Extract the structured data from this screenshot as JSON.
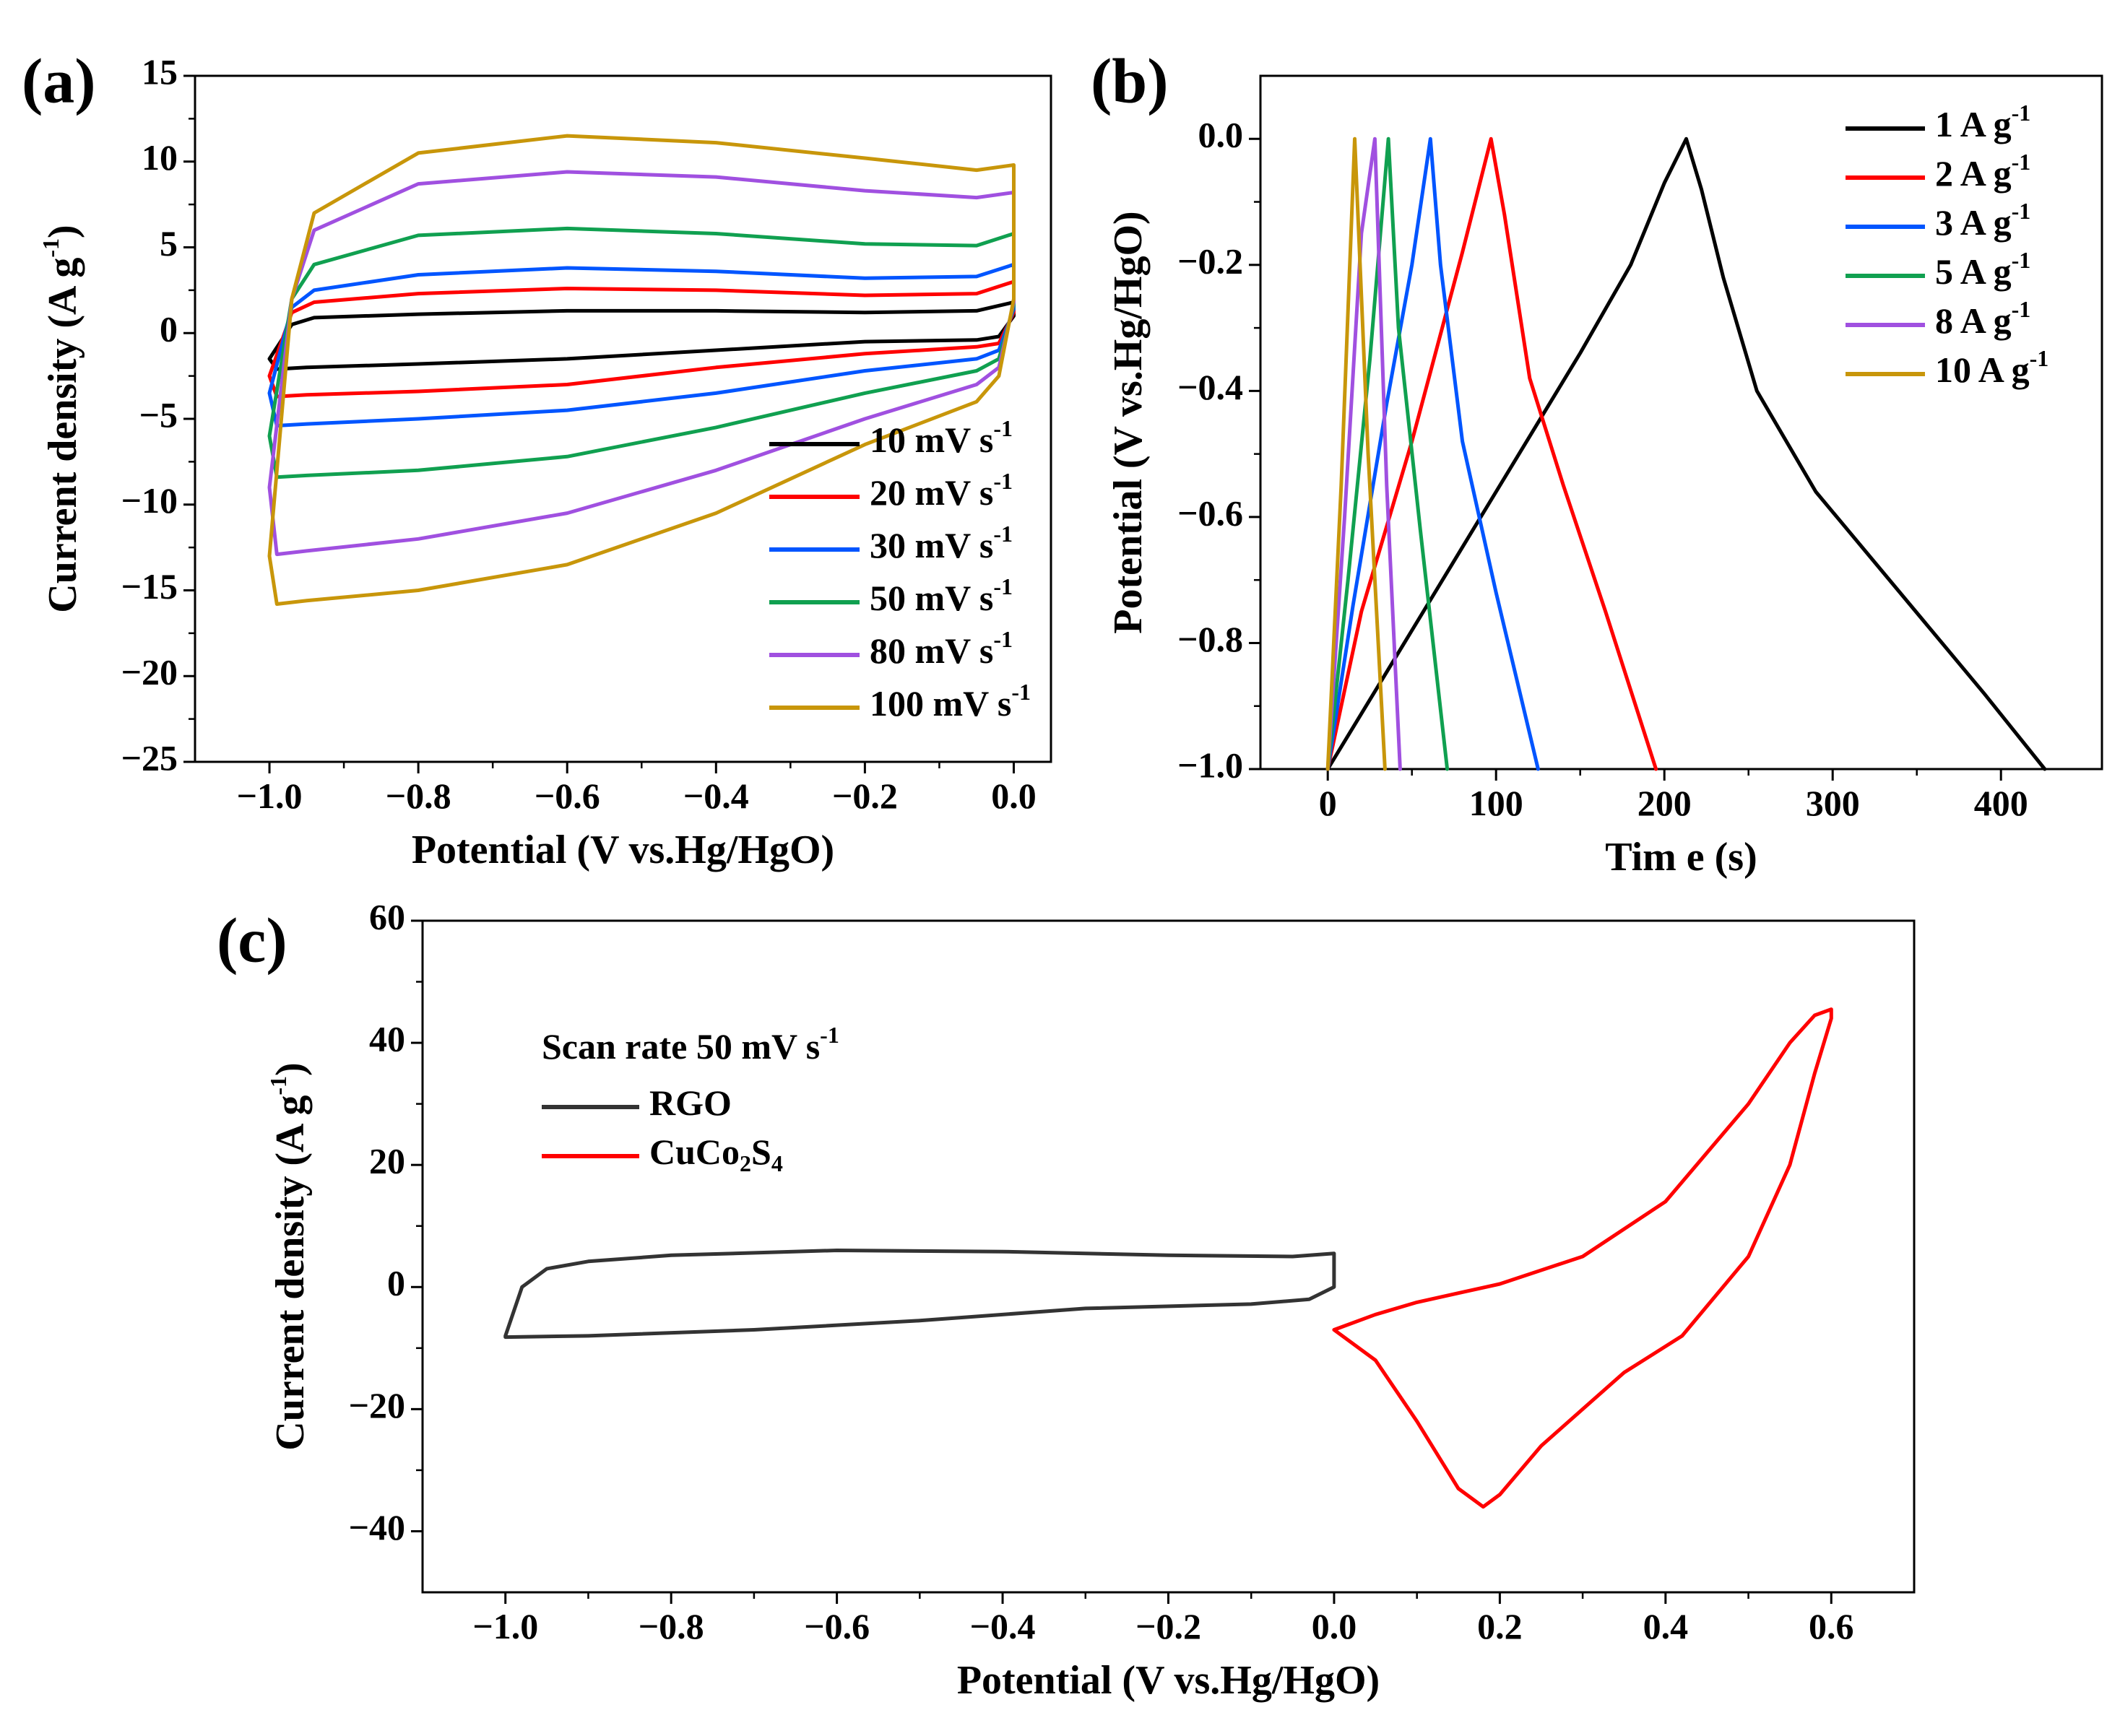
{
  "figure": {
    "panels": [
      "(a)",
      "(b)",
      "(c)"
    ]
  },
  "chart_data": [
    {
      "id": "a",
      "panel_label": "(a)",
      "type": "line",
      "title": "",
      "xlabel": "Potential (V vs.Hg/HgO)",
      "ylabel_main": "Current density (A g",
      "ylabel_sup": "-1",
      "ylabel_tail": ")",
      "xlim": [
        -1.1,
        0.05
      ],
      "ylim": [
        -25,
        15
      ],
      "xticks": [
        -1.0,
        -0.8,
        -0.6,
        -0.4,
        -0.2,
        0.0
      ],
      "xtick_labels": [
        "−1.0",
        "−0.8",
        "−0.6",
        "−0.4",
        "−0.2",
        "0.0"
      ],
      "yticks": [
        15,
        10,
        5,
        0,
        -5,
        -10,
        -15,
        -20,
        -25
      ],
      "ytick_labels": [
        "15",
        "10",
        "5",
        "0",
        "−5",
        "−10",
        "−15",
        "−20",
        "−25"
      ],
      "legend_position": "lower-right",
      "series": [
        {
          "name": "10 mV s",
          "sup": "-1",
          "color": "#000000",
          "x": [
            -1.0,
            -0.97,
            -0.94,
            -0.8,
            -0.6,
            -0.4,
            -0.2,
            -0.05,
            0.0,
            0.0,
            -0.02,
            -0.05,
            -0.2,
            -0.4,
            -0.6,
            -0.8,
            -0.95,
            -0.99,
            -1.0
          ],
          "y": [
            -1.5,
            0.5,
            0.9,
            1.1,
            1.3,
            1.3,
            1.2,
            1.3,
            1.8,
            1.0,
            -0.2,
            -0.4,
            -0.5,
            -1.0,
            -1.5,
            -1.8,
            -2.0,
            -2.1,
            -1.5
          ]
        },
        {
          "name": "20 mV s",
          "sup": "-1",
          "color": "#ff0000",
          "x": [
            -1.0,
            -0.97,
            -0.94,
            -0.8,
            -0.6,
            -0.4,
            -0.2,
            -0.05,
            0.0,
            0.0,
            -0.02,
            -0.05,
            -0.2,
            -0.4,
            -0.6,
            -0.8,
            -0.95,
            -0.99,
            -1.0
          ],
          "y": [
            -2.5,
            1.2,
            1.8,
            2.3,
            2.6,
            2.5,
            2.2,
            2.3,
            3.0,
            1.2,
            -0.6,
            -0.8,
            -1.2,
            -2.0,
            -3.0,
            -3.4,
            -3.6,
            -3.7,
            -2.5
          ]
        },
        {
          "name": "30 mV s",
          "sup": "-1",
          "color": "#0055ff",
          "x": [
            -1.0,
            -0.97,
            -0.94,
            -0.8,
            -0.6,
            -0.4,
            -0.2,
            -0.05,
            0.0,
            0.0,
            -0.02,
            -0.05,
            -0.2,
            -0.4,
            -0.6,
            -0.8,
            -0.95,
            -0.99,
            -1.0
          ],
          "y": [
            -3.5,
            1.5,
            2.5,
            3.4,
            3.8,
            3.6,
            3.2,
            3.3,
            4.0,
            1.4,
            -1.0,
            -1.5,
            -2.2,
            -3.5,
            -4.5,
            -5.0,
            -5.3,
            -5.4,
            -3.5
          ]
        },
        {
          "name": "50 mV s",
          "sup": "-1",
          "color": "#10a050",
          "x": [
            -1.0,
            -0.97,
            -0.94,
            -0.8,
            -0.6,
            -0.4,
            -0.2,
            -0.05,
            0.0,
            0.0,
            -0.02,
            -0.05,
            -0.2,
            -0.4,
            -0.6,
            -0.8,
            -0.95,
            -0.99,
            -1.0
          ],
          "y": [
            -6.0,
            2.0,
            4.0,
            5.7,
            6.1,
            5.8,
            5.2,
            5.1,
            5.8,
            1.6,
            -1.5,
            -2.2,
            -3.5,
            -5.5,
            -7.2,
            -8.0,
            -8.3,
            -8.4,
            -6.0
          ]
        },
        {
          "name": "80 mV s",
          "sup": "-1",
          "color": "#a050e0",
          "x": [
            -1.0,
            -0.97,
            -0.94,
            -0.8,
            -0.6,
            -0.4,
            -0.2,
            -0.05,
            0.0,
            0.0,
            -0.02,
            -0.05,
            -0.2,
            -0.4,
            -0.6,
            -0.8,
            -0.95,
            -0.99,
            -1.0
          ],
          "y": [
            -9.0,
            2.0,
            6.0,
            8.7,
            9.4,
            9.1,
            8.3,
            7.9,
            8.2,
            1.8,
            -2.0,
            -3.0,
            -5.0,
            -8.0,
            -10.5,
            -12.0,
            -12.7,
            -12.9,
            -9.0
          ]
        },
        {
          "name": "100 mV s",
          "sup": "-1",
          "color": "#c8960a",
          "x": [
            -1.0,
            -0.97,
            -0.94,
            -0.8,
            -0.6,
            -0.4,
            -0.2,
            -0.05,
            0.0,
            0.0,
            -0.02,
            -0.05,
            -0.2,
            -0.4,
            -0.6,
            -0.8,
            -0.95,
            -0.99,
            -1.0
          ],
          "y": [
            -13.0,
            2.0,
            7.0,
            10.5,
            11.5,
            11.1,
            10.2,
            9.5,
            9.8,
            2.0,
            -2.5,
            -4.0,
            -6.5,
            -10.5,
            -13.5,
            -15.0,
            -15.6,
            -15.8,
            -13.0
          ]
        }
      ]
    },
    {
      "id": "b",
      "panel_label": "(b)",
      "type": "line",
      "title": "",
      "xlabel": "Tim e (s)",
      "ylabel_main": "Potential (V vs.Hg/HgO)",
      "xlim": [
        -40,
        460
      ],
      "ylim": [
        -1.0,
        0.1
      ],
      "xticks": [
        0,
        100,
        200,
        300,
        400
      ],
      "xtick_labels": [
        "0",
        "100",
        "200",
        "300",
        "400"
      ],
      "yticks": [
        0.0,
        -0.2,
        -0.4,
        -0.6,
        -0.8,
        -1.0
      ],
      "ytick_labels": [
        "0.0",
        "−0.2",
        "−0.4",
        "−0.6",
        "−0.8",
        "−1.0"
      ],
      "legend_position": "top-right",
      "series": [
        {
          "name": "1 A g",
          "sup": "-1",
          "color": "#000000",
          "x": [
            0,
            50,
            100,
            150,
            180,
            200,
            213,
            222,
            235,
            255,
            290,
            340,
            390,
            426
          ],
          "y": [
            -1.0,
            -0.78,
            -0.56,
            -0.34,
            -0.2,
            -0.07,
            0.0,
            -0.08,
            -0.22,
            -0.4,
            -0.56,
            -0.72,
            -0.88,
            -1.0
          ]
        },
        {
          "name": "2 A g",
          "sup": "-1",
          "color": "#ff0000",
          "x": [
            0,
            20,
            50,
            80,
            97,
            105,
            120,
            140,
            165,
            195
          ],
          "y": [
            -1.0,
            -0.75,
            -0.48,
            -0.18,
            0.0,
            -0.12,
            -0.38,
            -0.55,
            -0.75,
            -1.0
          ]
        },
        {
          "name": "3 A g",
          "sup": "-1",
          "color": "#0055ff",
          "x": [
            0,
            15,
            35,
            50,
            61,
            67,
            80,
            100,
            125
          ],
          "y": [
            -1.0,
            -0.74,
            -0.42,
            -0.2,
            0.0,
            -0.2,
            -0.48,
            -0.72,
            -1.0
          ]
        },
        {
          "name": "5 A g",
          "sup": "-1",
          "color": "#10a050",
          "x": [
            0,
            12,
            25,
            36,
            42,
            55,
            71
          ],
          "y": [
            -1.0,
            -0.7,
            -0.35,
            0.0,
            -0.3,
            -0.62,
            -1.0
          ]
        },
        {
          "name": "8 A g",
          "sup": "-1",
          "color": "#a050e0",
          "x": [
            0,
            10,
            20,
            28,
            35,
            43
          ],
          "y": [
            -1.0,
            -0.6,
            -0.15,
            0.0,
            -0.55,
            -1.0
          ]
        },
        {
          "name": "10 A g",
          "sup": "-1",
          "color": "#c8960a",
          "x": [
            0,
            8,
            16,
            24,
            34
          ],
          "y": [
            -1.0,
            -0.55,
            0.0,
            -0.5,
            -1.0
          ]
        }
      ]
    },
    {
      "id": "c",
      "panel_label": "(c)",
      "type": "line",
      "title": "",
      "xlabel": "Potential (V vs.Hg/HgO)",
      "ylabel_main": "Current density (A g",
      "ylabel_sup": "-1",
      "ylabel_tail": ")",
      "xlim": [
        -1.1,
        0.7
      ],
      "ylim": [
        -50,
        60
      ],
      "xticks": [
        -1.0,
        -0.8,
        -0.6,
        -0.4,
        -0.2,
        0.0,
        0.2,
        0.4,
        0.6
      ],
      "xtick_labels": [
        "−1.0",
        "−0.8",
        "−0.6",
        "−0.4",
        "−0.2",
        "0.0",
        "0.2",
        "0.4",
        "0.6"
      ],
      "yticks": [
        60,
        40,
        20,
        0,
        -20,
        -40
      ],
      "ytick_labels": [
        "60",
        "40",
        "20",
        "0",
        "−20",
        "−40"
      ],
      "legend_title": "Scan rate 50 mV s",
      "legend_title_sup": "-1",
      "legend_position": "top-left",
      "series": [
        {
          "name": "RGO",
          "color": "#333333",
          "x": [
            -1.0,
            -0.98,
            -0.95,
            -0.9,
            -0.8,
            -0.6,
            -0.4,
            -0.2,
            -0.05,
            0.0,
            0.0,
            -0.03,
            -0.1,
            -0.3,
            -0.5,
            -0.7,
            -0.9,
            -1.0,
            -1.0
          ],
          "y": [
            -8.0,
            0.0,
            3.0,
            4.2,
            5.2,
            6.0,
            5.8,
            5.2,
            5.0,
            5.5,
            0.0,
            -2.0,
            -2.8,
            -3.5,
            -5.5,
            -7.0,
            -8.0,
            -8.2,
            -8.0
          ]
        },
        {
          "name": "CuCo",
          "name_sub1": "2",
          "name_mid": "S",
          "name_sub2": "4",
          "color": "#ff0000",
          "x": [
            0.0,
            0.05,
            0.1,
            0.2,
            0.3,
            0.4,
            0.5,
            0.55,
            0.58,
            0.6,
            0.6,
            0.58,
            0.55,
            0.5,
            0.42,
            0.35,
            0.3,
            0.25,
            0.2,
            0.18,
            0.15,
            0.1,
            0.05,
            0.0
          ],
          "y": [
            -7.0,
            -4.5,
            -2.5,
            0.5,
            5.0,
            14.0,
            30.0,
            40.0,
            44.5,
            45.5,
            44.0,
            35.0,
            20.0,
            5.0,
            -8.0,
            -14.0,
            -20.0,
            -26.0,
            -34.0,
            -36.0,
            -33.0,
            -22.0,
            -12.0,
            -7.0
          ]
        }
      ]
    }
  ]
}
